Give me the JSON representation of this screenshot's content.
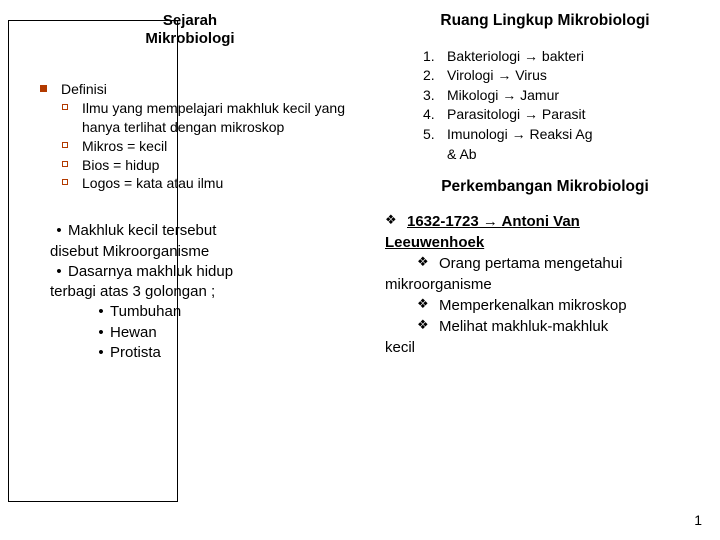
{
  "left": {
    "title_l1": "Sejarah",
    "title_l2": "Mikrobiologi",
    "definisi_label": "Definisi",
    "def_items": {
      "a": "Ilmu yang mempelajari makhluk kecil yang hanya terlihat dengan mikroskop",
      "b": "Mikros = kecil",
      "c": "Bios = hidup",
      "d": "Logos = kata atau ilmu"
    },
    "b2": {
      "l1a": "Makhluk kecil tersebut",
      "l1b": "disebut Mikroorganisme",
      "l2a": "Dasarnya makhluk hidup",
      "l2b": "terbagi atas 3 golongan ;",
      "s1": "Tumbuhan",
      "s2": "Hewan",
      "s3": "Protista"
    }
  },
  "right": {
    "title": "Ruang Lingkup Mikrobiologi",
    "ol": {
      "n1": "1.",
      "t1": "Bakteriologi → bakteri",
      "n2": "2.",
      "t2": "Virologi → Virus",
      "n3": "3.",
      "t3": "Mikologi → Jamur",
      "n4": "4.",
      "t4": "Parasitologi → Parasit",
      "n5": "5.",
      "t5a": "Imunologi → Reaksi Ag",
      "t5b": "& Ab"
    },
    "subtitle": "Perkembangan Mikrobiologi",
    "v": {
      "years": "1632-1723 → ",
      "name": "Antoni Van",
      "name2": "Leeuwenhoek",
      "a1": "Orang pertama mengetahui",
      "a1b": "mikroorganisme",
      "a2": "Memperkenalkan mikroskop",
      "a3": "Melihat makhluk-makhluk",
      "a3b": "kecil"
    }
  },
  "page_num": "1",
  "colors": {
    "bullet": "#b23a00",
    "text": "#000000",
    "bg": "#ffffff",
    "border": "#000000"
  }
}
